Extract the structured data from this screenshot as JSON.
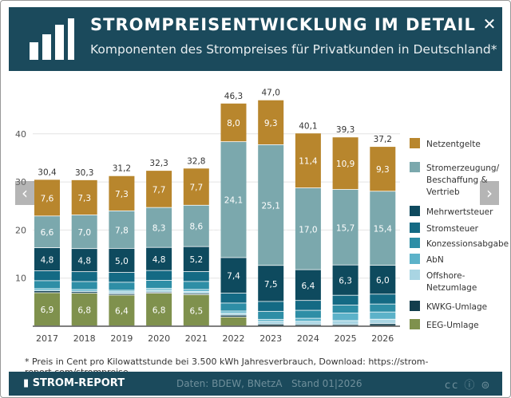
{
  "header": {
    "title": "STROMPREISENTWICKLUNG IM DETAIL",
    "subtitle": "Komponenten des Strompreises für Privatkunden in Deutschland*",
    "close": "✕"
  },
  "footnote": "* Preis in Cent pro Kilowattstunde bei 3.500 kWh Jahresverbrauch, Download: https://strom-report.com/strompreise",
  "footer": {
    "brand": "STROM-REPORT",
    "source": "Daten: BDEW, BNetzA   Stand 01|2026",
    "license": "cc ⓘ ⊜"
  },
  "watermark": "STROM-REPORT",
  "chart_data": {
    "type": "stacked-bar",
    "categories": [
      "2017",
      "2018",
      "2019",
      "2020",
      "2021",
      "2022",
      "2023",
      "2024",
      "2025",
      "2026"
    ],
    "ylim": [
      0,
      50
    ],
    "yticks": [
      10,
      20,
      30,
      40
    ],
    "grid": true,
    "legend": "right",
    "totals": [
      "30,4",
      "30,3",
      "31,2",
      "32,3",
      "32,8",
      "46,3",
      "47,0",
      "40,1",
      "39,3",
      "37,2"
    ],
    "series": [
      {
        "name": "EEG-Umlage",
        "color": "#7f914d",
        "values": [
          6.9,
          6.8,
          6.4,
          6.8,
          6.5,
          1.85,
          0,
          0,
          0,
          0
        ],
        "labels": [
          "6,9",
          "6,8",
          "6,4",
          "6,8",
          "6,5",
          "",
          "",
          "",
          "",
          ""
        ]
      },
      {
        "name": "KWKG-Umlage",
        "color": "#123e4d",
        "values": [
          0.44,
          0.35,
          0.28,
          0.23,
          0.25,
          0.38,
          0.36,
          0.28,
          0.28,
          0.45
        ]
      },
      {
        "name": "Offshore-Netzumlage",
        "color": "#a9d5e3",
        "values": [
          0.03,
          0.04,
          0.42,
          0.42,
          0.4,
          0.42,
          0.59,
          0.66,
          0.82,
          0.94
        ]
      },
      {
        "name": "AbN",
        "color": "#5cb2c9",
        "values": [
          0.37,
          0.37,
          0.31,
          0.36,
          0.43,
          0.44,
          0.42,
          0.64,
          1.56,
          1.5
        ]
      },
      {
        "name": "Konzessionsabgabe",
        "color": "#2e8ea6",
        "values": [
          1.66,
          1.66,
          1.66,
          1.66,
          1.66,
          1.66,
          1.66,
          1.66,
          1.66,
          1.66
        ]
      },
      {
        "name": "Stromsteuer",
        "color": "#146a84",
        "values": [
          2.05,
          2.05,
          2.05,
          2.05,
          2.05,
          2.05,
          2.05,
          2.05,
          2.05,
          2.05
        ]
      },
      {
        "name": "Mehrwertsteuer",
        "color": "#0e4a5e",
        "values": [
          4.8,
          4.8,
          5.0,
          4.8,
          5.2,
          7.4,
          7.5,
          6.4,
          6.3,
          6.0
        ],
        "labels": [
          "4,8",
          "4,8",
          "5,0",
          "4,8",
          "5,2",
          "7,4",
          "7,5",
          "6,4",
          "6,3",
          "6,0"
        ]
      },
      {
        "name": "Stromerzeugung/ Beschaffung & Vertrieb",
        "color": "#7ba8ad",
        "values": [
          6.6,
          7.0,
          7.8,
          8.3,
          8.6,
          24.1,
          25.1,
          17.0,
          15.7,
          15.4
        ],
        "labels": [
          "6,6",
          "7,0",
          "7,8",
          "8,3",
          "8,6",
          "24,1",
          "25,1",
          "17,0",
          "15,7",
          "15,4"
        ]
      },
      {
        "name": "Netzentgelte",
        "color": "#b8862d",
        "values": [
          7.6,
          7.3,
          7.3,
          7.7,
          7.7,
          8.0,
          9.3,
          11.4,
          10.9,
          9.3
        ],
        "labels": [
          "7,6",
          "7,3",
          "7,3",
          "7,7",
          "7,7",
          "8,0",
          "9,3",
          "11,4",
          "10,9",
          "9,3"
        ]
      }
    ]
  }
}
